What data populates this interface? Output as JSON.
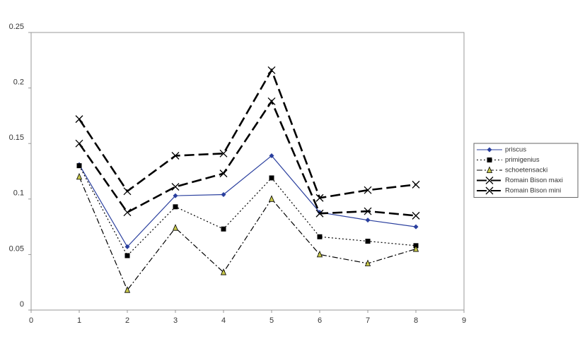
{
  "chart_data": {
    "type": "line",
    "x": [
      1,
      2,
      3,
      4,
      5,
      6,
      7,
      8
    ],
    "xlim": [
      0,
      9
    ],
    "xticks": [
      0,
      1,
      2,
      3,
      4,
      5,
      6,
      7,
      8,
      9
    ],
    "ylim": [
      0,
      0.25
    ],
    "yticks": [
      0,
      0.05,
      0.1,
      0.15,
      0.2,
      0.25
    ],
    "legend": "right",
    "series": [
      {
        "name": "priscus",
        "color": "#2a3f9e",
        "dash": "solid",
        "marker": "diamond",
        "values": [
          0.131,
          0.057,
          0.103,
          0.104,
          0.139,
          0.088,
          0.081,
          0.075
        ]
      },
      {
        "name": "primigenius",
        "color": "#000000",
        "dash": "dotted",
        "marker": "square",
        "values": [
          0.13,
          0.049,
          0.093,
          0.073,
          0.119,
          0.066,
          0.062,
          0.058
        ]
      },
      {
        "name": "schoetensacki",
        "color": "#000000",
        "dash": "dashdot",
        "marker": "triangle",
        "values": [
          0.12,
          0.018,
          0.074,
          0.034,
          0.1,
          0.05,
          0.042,
          0.055
        ]
      },
      {
        "name": "Romain Bison maxi",
        "color": "#000000",
        "dash": "dashed",
        "marker": "x",
        "values": [
          0.172,
          0.107,
          0.139,
          0.141,
          0.216,
          0.101,
          0.108,
          0.113
        ]
      },
      {
        "name": "Romain Bison mini",
        "color": "#000000",
        "dash": "dashed",
        "marker": "x",
        "values": [
          0.15,
          0.088,
          0.111,
          0.123,
          0.188,
          0.087,
          0.089,
          0.085
        ]
      }
    ]
  }
}
